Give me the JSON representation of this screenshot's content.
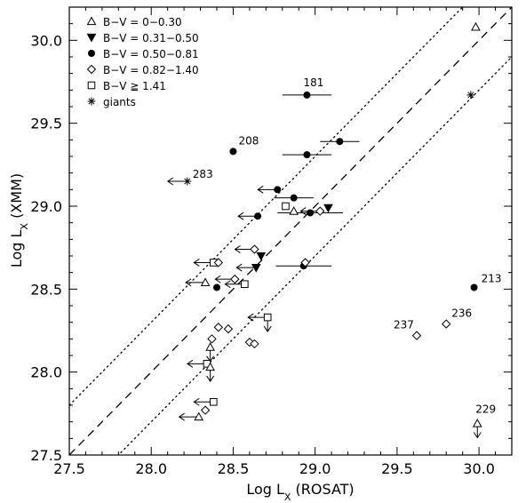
{
  "chart_data": {
    "type": "scatter",
    "xlabel": "Log L",
    "xlabel_sub": "X",
    "xlabel_suffix": "(ROSAT)",
    "ylabel": "Log L",
    "ylabel_sub": "X",
    "ylabel_suffix": "(XMM)",
    "xlim": [
      27.5,
      30.2
    ],
    "ylim": [
      27.5,
      30.2
    ],
    "x_ticks": [
      "27.5",
      "28.0",
      "28.5",
      "29.0",
      "29.5",
      "30.0"
    ],
    "y_ticks": [
      "27.5",
      "28.0",
      "28.5",
      "29.0",
      "29.5",
      "30.0"
    ],
    "x_tick_values": [
      27.5,
      28.0,
      28.5,
      29.0,
      29.5,
      30.0
    ],
    "y_tick_values": [
      27.5,
      28.0,
      28.5,
      29.0,
      29.5,
      30.0
    ],
    "grid": false,
    "legend_position": "top-left",
    "reference_lines": [
      {
        "style": "dashed",
        "offset": 0.0
      },
      {
        "style": "dotted",
        "offset": 0.3
      },
      {
        "style": "dotted",
        "offset": -0.3
      }
    ],
    "series": [
      {
        "name": "B−V = 0−0.30",
        "marker": "triangle-open"
      },
      {
        "name": "B−V = 0.31−0.50",
        "marker": "triangle-filled-down"
      },
      {
        "name": "B−V = 0.50−0.81",
        "marker": "circle-filled"
      },
      {
        "name": "B−V = 0.82−1.40",
        "marker": "diamond-open"
      },
      {
        "name": "B−V ≧ 1.41",
        "marker": "square-open"
      },
      {
        "name": "giants",
        "marker": "asterisk"
      }
    ],
    "points": [
      {
        "x": 29.98,
        "y": 30.08,
        "m": 0
      },
      {
        "x": 29.95,
        "y": 29.67,
        "m": 5
      },
      {
        "x": 28.95,
        "y": 29.67,
        "m": 2,
        "xerr": 0.15,
        "label": "181"
      },
      {
        "x": 29.15,
        "y": 29.39,
        "m": 2,
        "xerr": 0.12
      },
      {
        "x": 28.95,
        "y": 29.31,
        "m": 2,
        "xerr": 0.15
      },
      {
        "x": 28.5,
        "y": 29.33,
        "m": 2,
        "label": "208"
      },
      {
        "x": 28.22,
        "y": 29.15,
        "m": 5,
        "xul": true,
        "label": "283"
      },
      {
        "x": 28.77,
        "y": 29.1,
        "m": 2,
        "xul": true
      },
      {
        "x": 28.87,
        "y": 29.05,
        "m": 2,
        "xerr": 0.12
      },
      {
        "x": 29.08,
        "y": 28.99,
        "m": 1
      },
      {
        "x": 28.97,
        "y": 28.96,
        "m": 2,
        "xerr": 0.2
      },
      {
        "x": 28.65,
        "y": 28.94,
        "m": 2,
        "xul": true
      },
      {
        "x": 28.82,
        "y": 29.0,
        "m": 4
      },
      {
        "x": 28.87,
        "y": 28.97,
        "m": 0
      },
      {
        "x": 29.03,
        "y": 28.97,
        "m": 3,
        "xul": true
      },
      {
        "x": 28.67,
        "y": 28.7,
        "m": 1
      },
      {
        "x": 28.63,
        "y": 28.74,
        "m": 3,
        "xul": true
      },
      {
        "x": 28.64,
        "y": 28.63,
        "m": 1,
        "xul": true
      },
      {
        "x": 28.93,
        "y": 28.64,
        "m": 2,
        "xerr": 0.17
      },
      {
        "x": 28.94,
        "y": 28.66,
        "m": 3
      },
      {
        "x": 28.38,
        "y": 28.66,
        "m": 4,
        "xul": true
      },
      {
        "x": 28.41,
        "y": 28.66,
        "m": 3
      },
      {
        "x": 28.51,
        "y": 28.56,
        "m": 3,
        "xul": true
      },
      {
        "x": 28.57,
        "y": 28.53,
        "m": 4,
        "xul": true
      },
      {
        "x": 28.33,
        "y": 28.54,
        "m": 0,
        "xul": true
      },
      {
        "x": 28.4,
        "y": 28.51,
        "m": 2
      },
      {
        "x": 29.97,
        "y": 28.51,
        "m": 2,
        "label": "213"
      },
      {
        "x": 28.71,
        "y": 28.33,
        "m": 4,
        "xul": true,
        "yul": true
      },
      {
        "x": 28.41,
        "y": 28.27,
        "m": 3
      },
      {
        "x": 28.47,
        "y": 28.26,
        "m": 3
      },
      {
        "x": 28.37,
        "y": 28.2,
        "m": 3
      },
      {
        "x": 28.36,
        "y": 28.15,
        "m": 0,
        "yul": true
      },
      {
        "x": 28.6,
        "y": 28.18,
        "m": 3
      },
      {
        "x": 28.63,
        "y": 28.17,
        "m": 3
      },
      {
        "x": 29.62,
        "y": 28.22,
        "m": 3,
        "label": "237"
      },
      {
        "x": 29.8,
        "y": 28.29,
        "m": 3,
        "label": "236"
      },
      {
        "x": 28.34,
        "y": 28.05,
        "m": 4,
        "xul": true
      },
      {
        "x": 28.36,
        "y": 28.03,
        "m": 0,
        "yul": true
      },
      {
        "x": 28.38,
        "y": 27.82,
        "m": 4,
        "xul": true
      },
      {
        "x": 28.33,
        "y": 27.77,
        "m": 3
      },
      {
        "x": 28.29,
        "y": 27.73,
        "m": 0,
        "xul": true
      },
      {
        "x": 29.99,
        "y": 27.69,
        "m": 0,
        "yul": true,
        "label": "229"
      }
    ]
  }
}
